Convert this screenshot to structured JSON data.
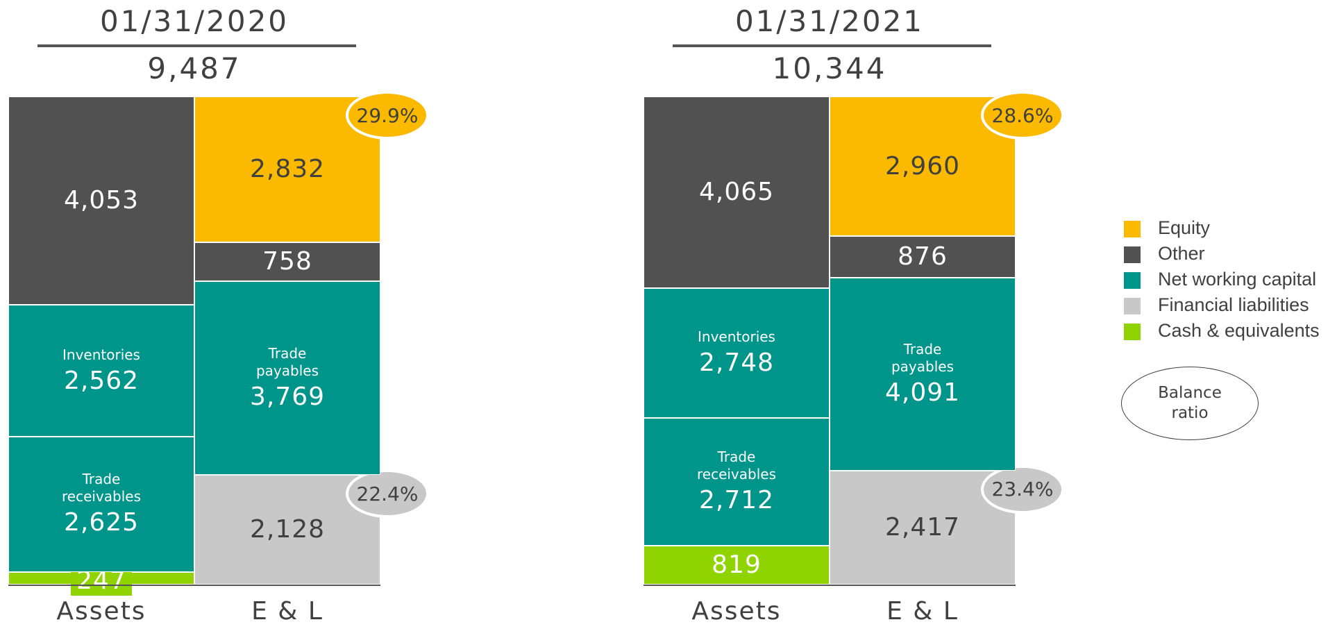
{
  "chart_data": [
    {
      "type": "stacked-bar",
      "title": "01/31/2020",
      "total": 9487,
      "total_label": "9,487",
      "categories": [
        "Assets",
        "E & L"
      ],
      "columns": [
        [
          {
            "value": 247,
            "value_label": "247",
            "color": "#8fd400"
          },
          {
            "label": "Trade receivables",
            "value": 2625,
            "value_label": "2,625",
            "color": "#00958a"
          },
          {
            "label": "Inventories",
            "value": 2562,
            "value_label": "2,562",
            "color": "#00958a"
          },
          {
            "value": 4053,
            "value_label": "4,053",
            "color": "#515151"
          }
        ],
        [
          {
            "value": 2128,
            "value_label": "2,128",
            "color": "#c8c8c8",
            "ratio": {
              "value": 22.4,
              "label": "22.4%"
            }
          },
          {
            "label": "Trade payables",
            "value": 3769,
            "value_label": "3,769",
            "color": "#00958a"
          },
          {
            "value": 758,
            "value_label": "758",
            "color": "#515151"
          },
          {
            "value": 2832,
            "value_label": "2,832",
            "color": "#fbb900",
            "ratio": {
              "value": 29.9,
              "label": "29.9%"
            }
          }
        ]
      ]
    },
    {
      "type": "stacked-bar",
      "title": "01/31/2021",
      "total": 10344,
      "total_label": "10,344",
      "categories": [
        "Assets",
        "E & L"
      ],
      "columns": [
        [
          {
            "value": 819,
            "value_label": "819",
            "color": "#8fd400"
          },
          {
            "label": "Trade receivables",
            "value": 2712,
            "value_label": "2,712",
            "color": "#00958a"
          },
          {
            "label": "Inventories",
            "value": 2748,
            "value_label": "2,748",
            "color": "#00958a"
          },
          {
            "value": 4065,
            "value_label": "4,065",
            "color": "#515151"
          }
        ],
        [
          {
            "value": 2417,
            "value_label": "2,417",
            "color": "#c8c8c8",
            "ratio": {
              "value": 23.4,
              "label": "23.4%"
            }
          },
          {
            "label": "Trade payables",
            "value": 4091,
            "value_label": "4,091",
            "color": "#00958a"
          },
          {
            "value": 876,
            "value_label": "876",
            "color": "#515151"
          },
          {
            "value": 2960,
            "value_label": "2,960",
            "color": "#fbb900",
            "ratio": {
              "value": 28.6,
              "label": "28.6%"
            }
          }
        ]
      ]
    }
  ],
  "legend": [
    {
      "name": "Equity",
      "color": "#fbb900"
    },
    {
      "name": "Other",
      "color": "#515151"
    },
    {
      "name": "Net working capital",
      "color": "#00958a"
    },
    {
      "name": "Financial liabilities",
      "color": "#c8c8c8"
    },
    {
      "name": "Cash & equivalents",
      "color": "#8fd400"
    }
  ],
  "ratio_legend": "Balance ratio"
}
